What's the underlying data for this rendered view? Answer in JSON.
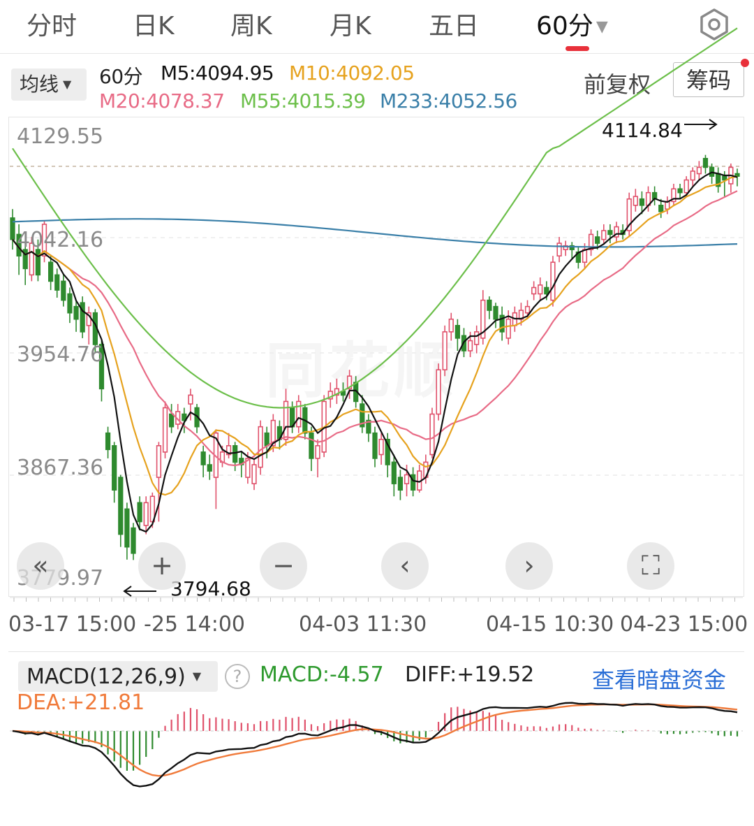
{
  "tabs": [
    {
      "label": "分时"
    },
    {
      "label": "日K"
    },
    {
      "label": "周K"
    },
    {
      "label": "月K"
    },
    {
      "label": "五日"
    },
    {
      "label": "60分",
      "active": true,
      "caret": "▼"
    }
  ],
  "settings_icon": "settings-hexagon-icon",
  "indicator_bar": {
    "ma_select": "均线",
    "period": "60分",
    "m5": "M5:4094.95",
    "m10": "M10:4092.05",
    "m20": "M20:4078.37",
    "m55": "M55:4015.39",
    "m233": "M233:4052.56",
    "fuquan": "前复权",
    "chouma": "筹码"
  },
  "colors": {
    "up": "#e0506a",
    "down": "#2e8a2e",
    "m5": "#111111",
    "m10": "#e6a21e",
    "m20": "#e86b86",
    "m55": "#6cbf4a",
    "m233": "#3a7fa8",
    "macd_link": "#2a6ed6",
    "dea": "#f07a3a"
  },
  "y_axis": {
    "labels": [
      "4129.55",
      "4042.16",
      "3954.76",
      "3867.36",
      "3779.97"
    ]
  },
  "x_axis": {
    "labels": [
      "03-17 15:00",
      "-25 14:00",
      "04-03 11:30",
      "04-15 10:30",
      "04-23 15:00"
    ]
  },
  "annotations": {
    "high": "4114.84",
    "low": "3794.68"
  },
  "zoom_controls": [
    {
      "glyph": "«",
      "icon": "rewind-icon"
    },
    {
      "glyph": "+",
      "icon": "zoom-in-icon"
    },
    {
      "glyph": "−",
      "icon": "zoom-out-icon"
    },
    {
      "glyph": "‹",
      "icon": "pan-left-icon"
    },
    {
      "glyph": "›",
      "icon": "pan-right-icon"
    },
    {
      "glyph": "⛶",
      "icon": "fullscreen-icon"
    }
  ],
  "macd": {
    "select": "MACD(12,26,9)",
    "macd_value": "MACD:-4.57",
    "diff": "DIFF:+19.52",
    "dea": "DEA:+21.81",
    "dark_pool_link": "查看暗盘资金"
  },
  "chart_data": {
    "type": "candlestick",
    "ylim": [
      3779.97,
      4129.55
    ],
    "candles": [
      {
        "o": 4065,
        "c": 4048,
        "h": 4072,
        "l": 4040
      },
      {
        "o": 4052,
        "c": 4035,
        "h": 4060,
        "l": 4020
      },
      {
        "o": 4040,
        "c": 4025,
        "h": 4045,
        "l": 4012
      },
      {
        "o": 4020,
        "c": 4045,
        "h": 4050,
        "l": 4015
      },
      {
        "o": 4040,
        "c": 4020,
        "h": 4048,
        "l": 4015
      },
      {
        "o": 4035,
        "c": 4060,
        "h": 4063,
        "l": 4030
      },
      {
        "o": 4030,
        "c": 4015,
        "h": 4035,
        "l": 4008
      },
      {
        "o": 4020,
        "c": 4008,
        "h": 4025,
        "l": 4002
      },
      {
        "o": 4015,
        "c": 4000,
        "h": 4020,
        "l": 3995
      },
      {
        "o": 4005,
        "c": 3990,
        "h": 4010,
        "l": 3982
      },
      {
        "o": 3995,
        "c": 3985,
        "h": 4000,
        "l": 3975
      },
      {
        "o": 3998,
        "c": 3975,
        "h": 4003,
        "l": 3970
      },
      {
        "o": 3980,
        "c": 3990,
        "h": 3995,
        "l": 3965
      },
      {
        "o": 3990,
        "c": 3965,
        "h": 3993,
        "l": 3958
      },
      {
        "o": 3965,
        "c": 3930,
        "h": 3968,
        "l": 3920
      },
      {
        "o": 3895,
        "c": 3882,
        "h": 3900,
        "l": 3875
      },
      {
        "o": 3885,
        "c": 3850,
        "h": 3888,
        "l": 3840
      },
      {
        "o": 3860,
        "c": 3815,
        "h": 3862,
        "l": 3805
      },
      {
        "o": 3835,
        "c": 3805,
        "h": 3840,
        "l": 3795
      },
      {
        "o": 3820,
        "c": 3800,
        "h": 3824,
        "l": 3794.68
      },
      {
        "o": 3840,
        "c": 3825,
        "h": 3845,
        "l": 3818
      },
      {
        "o": 3822,
        "c": 3840,
        "h": 3845,
        "l": 3815
      },
      {
        "o": 3825,
        "c": 3845,
        "h": 3848,
        "l": 3820
      },
      {
        "o": 3860,
        "c": 3885,
        "h": 3888,
        "l": 3825
      },
      {
        "o": 3880,
        "c": 3915,
        "h": 3920,
        "l": 3875
      },
      {
        "o": 3910,
        "c": 3900,
        "h": 3918,
        "l": 3895
      },
      {
        "o": 3902,
        "c": 3912,
        "h": 3918,
        "l": 3898
      },
      {
        "o": 3910,
        "c": 3905,
        "h": 3915,
        "l": 3895
      },
      {
        "o": 3918,
        "c": 3925,
        "h": 3930,
        "l": 3905
      },
      {
        "o": 3915,
        "c": 3900,
        "h": 3918,
        "l": 3895
      },
      {
        "o": 3880,
        "c": 3870,
        "h": 3885,
        "l": 3860
      },
      {
        "o": 3870,
        "c": 3865,
        "h": 3878,
        "l": 3858
      },
      {
        "o": 3860,
        "c": 3895,
        "h": 3898,
        "l": 3835
      },
      {
        "o": 3872,
        "c": 3880,
        "h": 3885,
        "l": 3868
      },
      {
        "o": 3878,
        "c": 3885,
        "h": 3895,
        "l": 3875
      },
      {
        "o": 3885,
        "c": 3872,
        "h": 3888,
        "l": 3865
      },
      {
        "o": 3875,
        "c": 3870,
        "h": 3880,
        "l": 3860
      },
      {
        "o": 3860,
        "c": 3875,
        "h": 3880,
        "l": 3855
      },
      {
        "o": 3855,
        "c": 3870,
        "h": 3875,
        "l": 3850
      },
      {
        "o": 3868,
        "c": 3900,
        "h": 3905,
        "l": 3862
      },
      {
        "o": 3895,
        "c": 3885,
        "h": 3900,
        "l": 3875
      },
      {
        "o": 3885,
        "c": 3905,
        "h": 3910,
        "l": 3880
      },
      {
        "o": 3900,
        "c": 3890,
        "h": 3905,
        "l": 3882
      },
      {
        "o": 3890,
        "c": 3920,
        "h": 3930,
        "l": 3885
      },
      {
        "o": 3915,
        "c": 3900,
        "h": 3920,
        "l": 3895
      },
      {
        "o": 3900,
        "c": 3920,
        "h": 3925,
        "l": 3895
      },
      {
        "o": 3915,
        "c": 3895,
        "h": 3918,
        "l": 3890
      },
      {
        "o": 3895,
        "c": 3875,
        "h": 3900,
        "l": 3865
      },
      {
        "o": 3875,
        "c": 3885,
        "h": 3890,
        "l": 3860
      },
      {
        "o": 3880,
        "c": 3920,
        "h": 3925,
        "l": 3876
      },
      {
        "o": 3922,
        "c": 3928,
        "h": 3935,
        "l": 3915
      },
      {
        "o": 3925,
        "c": 3930,
        "h": 3938,
        "l": 3918
      },
      {
        "o": 3928,
        "c": 3925,
        "h": 3935,
        "l": 3920
      },
      {
        "o": 3930,
        "c": 3940,
        "h": 3945,
        "l": 3922
      },
      {
        "o": 3935,
        "c": 3920,
        "h": 3940,
        "l": 3915
      },
      {
        "o": 3918,
        "c": 3900,
        "h": 3925,
        "l": 3895
      },
      {
        "o": 3905,
        "c": 3895,
        "h": 3910,
        "l": 3888
      },
      {
        "o": 3895,
        "c": 3875,
        "h": 3900,
        "l": 3868
      },
      {
        "o": 3878,
        "c": 3890,
        "h": 3895,
        "l": 3870
      },
      {
        "o": 3890,
        "c": 3870,
        "h": 3895,
        "l": 3860
      },
      {
        "o": 3872,
        "c": 3855,
        "h": 3878,
        "l": 3845
      },
      {
        "o": 3860,
        "c": 3850,
        "h": 3866,
        "l": 3842
      },
      {
        "o": 3855,
        "c": 3862,
        "h": 3870,
        "l": 3845
      },
      {
        "o": 3862,
        "c": 3850,
        "h": 3868,
        "l": 3845
      },
      {
        "o": 3850,
        "c": 3865,
        "h": 3870,
        "l": 3848
      },
      {
        "o": 3860,
        "c": 3872,
        "h": 3878,
        "l": 3855
      },
      {
        "o": 3878,
        "c": 3910,
        "h": 3915,
        "l": 3875
      },
      {
        "o": 3910,
        "c": 3945,
        "h": 3950,
        "l": 3905
      },
      {
        "o": 3945,
        "c": 3975,
        "h": 3980,
        "l": 3940
      },
      {
        "o": 3975,
        "c": 3985,
        "h": 3990,
        "l": 3968
      },
      {
        "o": 3980,
        "c": 3970,
        "h": 3985,
        "l": 3960
      },
      {
        "o": 3972,
        "c": 3960,
        "h": 3978,
        "l": 3955
      },
      {
        "o": 3960,
        "c": 3968,
        "h": 3975,
        "l": 3955
      },
      {
        "o": 3965,
        "c": 3975,
        "h": 3980,
        "l": 3958
      },
      {
        "o": 3970,
        "c": 4000,
        "h": 4008,
        "l": 3965
      },
      {
        "o": 4000,
        "c": 3992,
        "h": 4003,
        "l": 3985
      },
      {
        "o": 3995,
        "c": 3985,
        "h": 3998,
        "l": 3978
      },
      {
        "o": 3988,
        "c": 3975,
        "h": 3995,
        "l": 3968
      },
      {
        "o": 3970,
        "c": 3985,
        "h": 3992,
        "l": 3965
      },
      {
        "o": 3980,
        "c": 3990,
        "h": 3995,
        "l": 3975
      },
      {
        "o": 3985,
        "c": 3992,
        "h": 3998,
        "l": 3980
      },
      {
        "o": 3990,
        "c": 3995,
        "h": 4000,
        "l": 3985
      },
      {
        "o": 4005,
        "c": 4010,
        "h": 4015,
        "l": 4000
      },
      {
        "o": 4005,
        "c": 4012,
        "h": 4018,
        "l": 4000
      },
      {
        "o": 4010,
        "c": 4005,
        "h": 4015,
        "l": 4000
      },
      {
        "o": 4000,
        "c": 4030,
        "h": 4035,
        "l": 3995
      },
      {
        "o": 4035,
        "c": 4045,
        "h": 4050,
        "l": 4030
      },
      {
        "o": 4040,
        "c": 4043,
        "h": 4047,
        "l": 4035
      },
      {
        "o": 4043,
        "c": 4040,
        "h": 4046,
        "l": 4032
      },
      {
        "o": 4038,
        "c": 4030,
        "h": 4042,
        "l": 4025
      },
      {
        "o": 4030,
        "c": 4040,
        "h": 4045,
        "l": 4025
      },
      {
        "o": 4040,
        "c": 4052,
        "h": 4056,
        "l": 4035
      },
      {
        "o": 4050,
        "c": 4045,
        "h": 4055,
        "l": 4040
      },
      {
        "o": 4048,
        "c": 4055,
        "h": 4060,
        "l": 4045
      },
      {
        "o": 4055,
        "c": 4052,
        "h": 4060,
        "l": 4045
      },
      {
        "o": 4050,
        "c": 4058,
        "h": 4062,
        "l": 4045
      },
      {
        "o": 4055,
        "c": 4052,
        "h": 4060,
        "l": 4048
      },
      {
        "o": 4055,
        "c": 4080,
        "h": 4085,
        "l": 4050
      },
      {
        "o": 4075,
        "c": 4082,
        "h": 4088,
        "l": 4070
      },
      {
        "o": 4080,
        "c": 4075,
        "h": 4086,
        "l": 4068
      },
      {
        "o": 4075,
        "c": 4085,
        "h": 4090,
        "l": 4070
      },
      {
        "o": 4085,
        "c": 4080,
        "h": 4090,
        "l": 4075
      },
      {
        "o": 4075,
        "c": 4070,
        "h": 4080,
        "l": 4065
      },
      {
        "o": 4072,
        "c": 4078,
        "h": 4082,
        "l": 4068
      },
      {
        "o": 4078,
        "c": 4088,
        "h": 4092,
        "l": 4075
      },
      {
        "o": 4088,
        "c": 4085,
        "h": 4092,
        "l": 4080
      },
      {
        "o": 4085,
        "c": 4095,
        "h": 4098,
        "l": 4082
      },
      {
        "o": 4095,
        "c": 4102,
        "h": 4105,
        "l": 4090
      },
      {
        "o": 4100,
        "c": 4105,
        "h": 4110,
        "l": 4095
      },
      {
        "o": 4112,
        "c": 4105,
        "h": 4114.84,
        "l": 4100
      },
      {
        "o": 4105,
        "c": 4098,
        "h": 4108,
        "l": 4092
      },
      {
        "o": 4100,
        "c": 4090,
        "h": 4105,
        "l": 4085
      },
      {
        "o": 4098,
        "c": 4095,
        "h": 4102,
        "l": 4082
      },
      {
        "o": 4092,
        "c": 4105,
        "h": 4108,
        "l": 4085
      },
      {
        "o": 4100,
        "c": 4098,
        "h": 4104,
        "l": 4090
      }
    ]
  }
}
